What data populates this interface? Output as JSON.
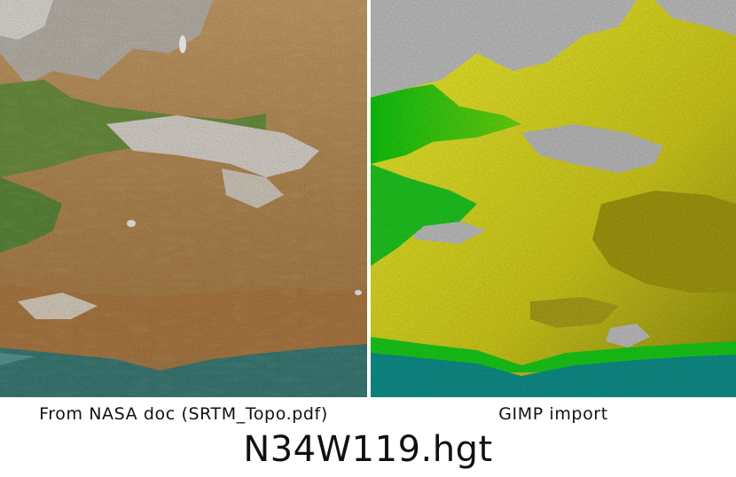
{
  "figure": {
    "left_panel": {
      "caption": "From NASA doc (SRTM_Topo.pdf)"
    },
    "right_panel": {
      "caption": "GIMP import"
    },
    "title": "N34W119.hgt"
  },
  "colors": {
    "relief_low": "#6f8f3a",
    "relief_mid": "#b98a4c",
    "relief_high": "#e6e2dc",
    "relief_ocean": "#3d7d78",
    "gimp_ocean": "#108b86",
    "gimp_green": "#10c010",
    "gimp_yellow": "#e4e22b",
    "gimp_olive": "#8e8a10",
    "gimp_gray": "#b8b8b8"
  }
}
